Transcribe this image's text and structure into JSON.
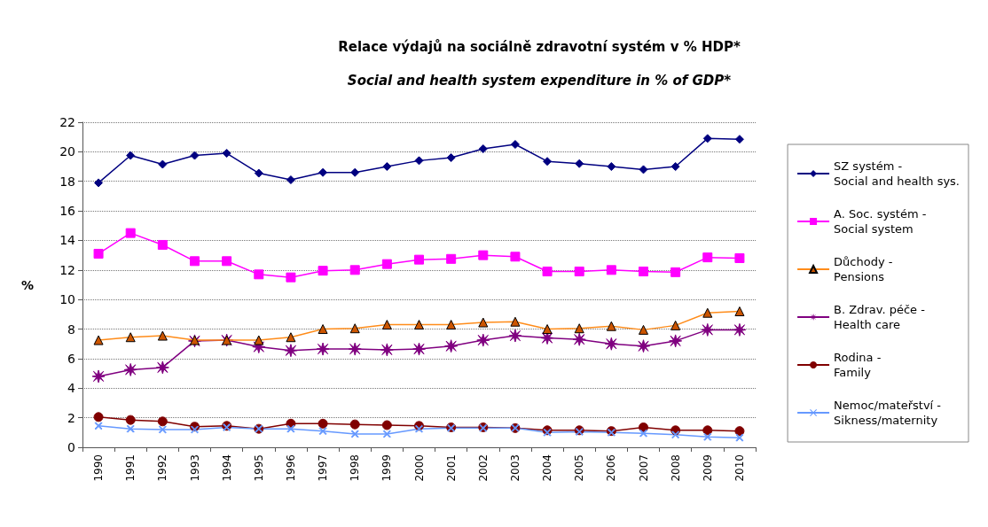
{
  "chart_data": {
    "type": "line",
    "title": "Relace výdajů na sociálně zdravotní systém v % HDP*",
    "subtitle": "Social and health system expenditure in % of GDP*",
    "ylabel": "%",
    "categories": [
      "1990",
      "1991",
      "1992",
      "1993",
      "1994",
      "1995",
      "1996",
      "1997",
      "1998",
      "1999",
      "2000",
      "2001",
      "2002",
      "2003",
      "2004",
      "2005",
      "2006",
      "2007",
      "2008",
      "2009",
      "2010"
    ],
    "ylim": [
      0,
      22
    ],
    "yticks": [
      0,
      2,
      4,
      6,
      8,
      10,
      12,
      14,
      16,
      18,
      20,
      22
    ],
    "grid": "y",
    "legend": "right",
    "series": [
      {
        "name": "SZ systém -\nSocial and health sys.",
        "color": "#000080",
        "marker": "diamond",
        "values": [
          17.9,
          19.75,
          19.15,
          19.75,
          19.9,
          18.55,
          18.1,
          18.6,
          18.6,
          19.0,
          19.4,
          19.6,
          20.2,
          20.5,
          19.35,
          19.2,
          19.0,
          18.8,
          19.0,
          20.9,
          20.85
        ]
      },
      {
        "name": "A. Soc. systém -\nSocial system",
        "color": "#ff00ff",
        "marker": "square",
        "values": [
          13.1,
          14.5,
          13.7,
          12.6,
          12.6,
          11.7,
          11.5,
          11.95,
          12.0,
          12.4,
          12.7,
          12.75,
          13.0,
          12.9,
          11.9,
          11.9,
          12.0,
          11.9,
          11.85,
          12.85,
          12.8
        ]
      },
      {
        "name": "Důchody -\nPensions",
        "color": "#ff8c1a",
        "marker": "triangle",
        "values": [
          7.25,
          7.45,
          7.55,
          7.25,
          7.25,
          7.25,
          7.45,
          8.0,
          8.05,
          8.3,
          8.3,
          8.3,
          8.45,
          8.5,
          8.0,
          8.05,
          8.2,
          7.95,
          8.25,
          9.1,
          9.2
        ]
      },
      {
        "name": "B. Zdrav. péče -\nHealth care",
        "color": "#800080",
        "marker": "star",
        "values": [
          4.8,
          5.25,
          5.4,
          7.2,
          7.25,
          6.8,
          6.55,
          6.65,
          6.65,
          6.6,
          6.65,
          6.85,
          7.25,
          7.55,
          7.4,
          7.3,
          7.0,
          6.85,
          7.2,
          7.95,
          7.95
        ]
      },
      {
        "name": "Rodina -\nFamily",
        "color": "#800000",
        "marker": "circle",
        "values": [
          2.05,
          1.85,
          1.75,
          1.4,
          1.45,
          1.25,
          1.6,
          1.6,
          1.55,
          1.5,
          1.45,
          1.35,
          1.35,
          1.3,
          1.15,
          1.15,
          1.1,
          1.35,
          1.15,
          1.15,
          1.1
        ]
      },
      {
        "name": "Nemoc/mateřství -\nSikness/maternity",
        "color": "#6699ff",
        "marker": "cross",
        "values": [
          1.45,
          1.25,
          1.2,
          1.2,
          1.35,
          1.25,
          1.25,
          1.1,
          0.9,
          0.9,
          1.25,
          1.3,
          1.3,
          1.3,
          1.0,
          1.05,
          1.0,
          0.95,
          0.85,
          0.7,
          0.65
        ]
      }
    ]
  }
}
